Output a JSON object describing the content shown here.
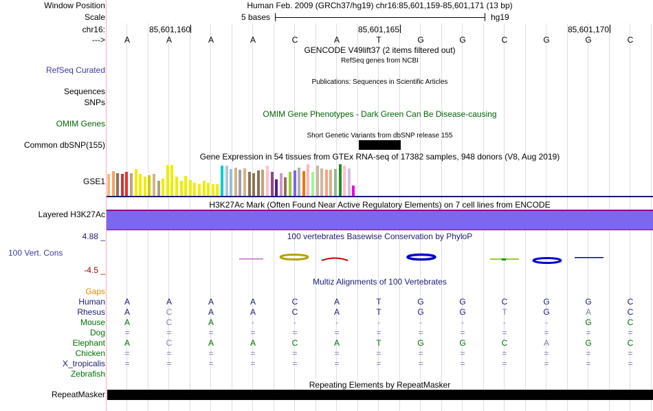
{
  "header": {
    "window_position_label": "Window Position",
    "window_position_value": "Human Feb. 2009 (GRCh37/hg19)   chr16:85,601,159-85,601,171 (13 bp)",
    "scale_label": "Scale",
    "scale_text": "5 bases",
    "scale_assembly": "hg19",
    "chrom_label": "chr16:",
    "positions": [
      "85,601,160",
      "85,601,165",
      "85,601,170"
    ],
    "strand_label": "--->"
  },
  "bases": [
    "A",
    "A",
    "A",
    "A",
    "C",
    "A",
    "T",
    "G",
    "G",
    "C",
    "G",
    "G",
    "C"
  ],
  "tracks": {
    "gencode_title": "GENCODE V49lift37 (2 items filtered out)",
    "refseq_subtitle": "RefSeq genes from NCBI",
    "refseq_label": "RefSeq Curated",
    "publications_title": "Publications: Sequences in Scientific Articles",
    "sequences_label": "Sequences",
    "snps_label": "SNPs",
    "omim_title": "OMIM Gene Phenotypes - Dark Green Can Be Disease-causing",
    "omim_label": "OMIM Genes",
    "dbsnp_title": "Short Genetic Variants from dbSNP release 155",
    "dbsnp_label": "Common dbSNP(155)",
    "gtex_title": "Gene Expression in 54 tissues from GTEx RNA-seq of 17382 samples, 948 donors (V8, Aug 2019)",
    "gtex_label": "GSE1",
    "h3k27_title": "H3K27Ac Mark (Often Found Near Active Regulatory Elements) on 7 cell lines from ENCODE",
    "h3k27_label": "Layered H3K27Ac",
    "cons_max": "4.88 _",
    "cons_label": "100 Vert. Cons",
    "cons_min": "-4.5 _",
    "cons_title": "100 vertebrates Basewise Conservation by PhyloP",
    "multiz_title": "Multiz Alignments of 100 Vertebrates",
    "gaps_label": "Gaps",
    "repeat_title": "Repeating Elements by RepeatMasker",
    "repeat_label": "RepeatMasker"
  },
  "gtex_bars": [
    {
      "v": 0.7,
      "c": "#f5b97f"
    },
    {
      "v": 0.78,
      "c": "#f4a460"
    },
    {
      "v": 0.72,
      "c": "#8b7355"
    },
    {
      "v": 0.7,
      "c": "#cd3333"
    },
    {
      "v": 0.75,
      "c": "#ee2c2c"
    },
    {
      "v": 0.72,
      "c": "#c0a080"
    },
    {
      "v": 0.85,
      "c": "#eeee00"
    },
    {
      "v": 0.7,
      "c": "#eeee00"
    },
    {
      "v": 0.6,
      "c": "#eeee00"
    },
    {
      "v": 0.65,
      "c": "#cdcd00"
    },
    {
      "v": 0.7,
      "c": "#d2b48c"
    },
    {
      "v": 0.48,
      "c": "#b0a080"
    },
    {
      "v": 0.55,
      "c": "#eeee00"
    },
    {
      "v": 0.98,
      "c": "#eeee00"
    },
    {
      "v": 0.98,
      "c": "#eeee00"
    },
    {
      "v": 0.6,
      "c": "#eeee00"
    },
    {
      "v": 0.48,
      "c": "#eeee00"
    },
    {
      "v": 0.62,
      "c": "#eeee00"
    },
    {
      "v": 0.5,
      "c": "#eeee00"
    },
    {
      "v": 0.42,
      "c": "#eeee00"
    },
    {
      "v": 0.38,
      "c": "#eeee00"
    },
    {
      "v": 0.48,
      "c": "#eeee00"
    },
    {
      "v": 0.42,
      "c": "#eeee00"
    },
    {
      "v": 0.38,
      "c": "#eeee00"
    },
    {
      "v": 0.38,
      "c": "#eeee00"
    },
    {
      "v": 0.95,
      "c": "#00cdcd"
    },
    {
      "v": 0.95,
      "c": "#b0c4de"
    },
    {
      "v": 0.85,
      "c": "#9ac0cd"
    },
    {
      "v": 0.9,
      "c": "#d2b48c"
    },
    {
      "v": 0.82,
      "c": "#a0a0a0"
    },
    {
      "v": 0.88,
      "c": "#d2b48c"
    },
    {
      "v": 0.75,
      "c": "#8b7355"
    },
    {
      "v": 0.72,
      "c": "#8b7355"
    },
    {
      "v": 0.8,
      "c": "#8b7355"
    },
    {
      "v": 0.82,
      "c": "#c0a080"
    },
    {
      "v": 0.95,
      "c": "#ffc0cb"
    },
    {
      "v": 0.75,
      "c": "#8b4789"
    },
    {
      "v": 0.52,
      "c": "#551a8b"
    },
    {
      "v": 0.72,
      "c": "#cd96cd"
    },
    {
      "v": 0.58,
      "c": "#8b7355"
    },
    {
      "v": 0.75,
      "c": "#9acd32"
    },
    {
      "v": 0.8,
      "c": "#7a67ee"
    },
    {
      "v": 0.9,
      "c": "#b0b0b0"
    },
    {
      "v": 0.78,
      "c": "#ee7600"
    },
    {
      "v": 1.0,
      "c": "#ffb6c1"
    },
    {
      "v": 0.75,
      "c": "#98fb98"
    },
    {
      "v": 0.95,
      "c": "#cdb79e"
    },
    {
      "v": 0.88,
      "c": "#cdb79e"
    },
    {
      "v": 0.82,
      "c": "#ffa07a"
    },
    {
      "v": 0.82,
      "c": "#d2b48c"
    },
    {
      "v": 0.85,
      "c": "#8fbc8f"
    },
    {
      "v": 1.0,
      "c": "#228b22"
    },
    {
      "v": 0.95,
      "c": "#ffc0cb"
    },
    {
      "v": 0.88,
      "c": "#d8bfd8"
    },
    {
      "v": 0.32,
      "c": "#ee00ee"
    }
  ],
  "species": [
    {
      "name": "Human",
      "color": "#1a1a70",
      "bases": [
        "A",
        "A",
        "A",
        "A",
        "C",
        "A",
        "T",
        "G",
        "G",
        "C",
        "G",
        "G",
        "C"
      ],
      "faded": []
    },
    {
      "name": "Rhesus",
      "color": "#1a1a70",
      "bases": [
        "A",
        "C",
        "A",
        "A",
        "C",
        "A",
        "T",
        "G",
        "G",
        "T",
        "G",
        "A",
        "C"
      ],
      "faded": [
        1,
        9,
        11
      ]
    },
    {
      "name": "Mouse",
      "color": "#007000",
      "bases": [
        "A",
        "C",
        "A",
        "-",
        "-",
        "-",
        "-",
        "-",
        "-",
        "-",
        "-",
        "G",
        "C"
      ],
      "faded": [
        1,
        3,
        4,
        5,
        6,
        7,
        8,
        9,
        10
      ]
    },
    {
      "name": "Dog",
      "color": "#007000",
      "bases": [
        "=",
        "=",
        "=",
        "=",
        "=",
        "=",
        "=",
        "=",
        "=",
        "=",
        "=",
        "=",
        "="
      ],
      "faded": [
        0,
        1,
        2,
        3,
        4,
        5,
        6,
        7,
        8,
        9,
        10,
        11,
        12
      ]
    },
    {
      "name": "Elephant",
      "color": "#007000",
      "bases": [
        "A",
        "C",
        "A",
        "A",
        "C",
        "A",
        "T",
        "G",
        "G",
        "C",
        "A",
        "G",
        "C"
      ],
      "faded": [
        1,
        10
      ]
    },
    {
      "name": "Chicken",
      "color": "#007000",
      "bases": [
        "=",
        "=",
        "=",
        "=",
        "=",
        "=",
        "=",
        "=",
        "=",
        "=",
        "=",
        "=",
        "="
      ],
      "faded": [
        0,
        1,
        2,
        3,
        4,
        5,
        6,
        7,
        8,
        9,
        10,
        11,
        12
      ]
    },
    {
      "name": "X_tropicalis",
      "color": "#1a1a70",
      "bases": [
        "=",
        "=",
        "=",
        "=",
        "=",
        "=",
        "=",
        "=",
        "=",
        "=",
        "=",
        "=",
        "="
      ],
      "faded": [
        0,
        1,
        2,
        3,
        4,
        5,
        6,
        7,
        8,
        9,
        10,
        11,
        12
      ]
    },
    {
      "name": "Zebrafish",
      "color": "#007000",
      "bases": [],
      "faded": []
    }
  ],
  "colors": {
    "h3k27_fill": "#7b68ee",
    "h3k27_border": "#8b008b",
    "gtex_baseline": "#1a1a70",
    "gaps_label": "#e08c00",
    "cons_max": "#1a1a70",
    "cons_min": "#8b0000"
  }
}
